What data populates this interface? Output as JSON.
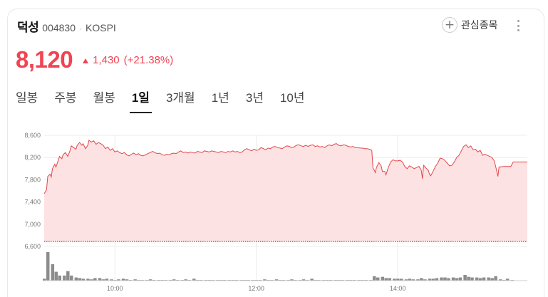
{
  "stock": {
    "name": "덕성",
    "code": "004830",
    "separator": "·",
    "market": "KOSPI",
    "price": "8,120",
    "change": "1,430",
    "change_pct": "(+21.38%)",
    "up_color": "#f04452"
  },
  "actions": {
    "favorite_icon": "plus-icon",
    "favorite_label": "관심종목",
    "more_icon": "more-vertical-icon"
  },
  "tabs": [
    {
      "label": "일봉",
      "active": false
    },
    {
      "label": "주봉",
      "active": false
    },
    {
      "label": "월봉",
      "active": false
    },
    {
      "label": "1일",
      "active": true
    },
    {
      "label": "3개월",
      "active": false
    },
    {
      "label": "1년",
      "active": false
    },
    {
      "label": "3년",
      "active": false
    },
    {
      "label": "10년",
      "active": false
    }
  ],
  "chart_data": {
    "type": "area",
    "line_color": "#e0474c",
    "fill_color": "#fde2e3",
    "grid": true,
    "y_ticks": [
      "8,600",
      "8,200",
      "7,800",
      "7,400",
      "7,000",
      "6,600"
    ],
    "y_tick_values": [
      8600,
      8200,
      7800,
      7400,
      7000,
      6600
    ],
    "ylim": [
      6600,
      8600
    ],
    "x_ticks": [
      "10:00",
      "12:00",
      "14:00"
    ],
    "x_tick_minutes": [
      60,
      180,
      300
    ],
    "xlim": [
      0,
      410
    ],
    "reference_value": 6690,
    "series": [
      {
        "values": [
          [
            0,
            7550
          ],
          [
            2,
            7620
          ],
          [
            3,
            7860
          ],
          [
            5,
            7900
          ],
          [
            6,
            7850
          ],
          [
            7,
            8000
          ],
          [
            9,
            8080
          ],
          [
            10,
            8030
          ],
          [
            12,
            8150
          ],
          [
            13,
            8220
          ],
          [
            15,
            8180
          ],
          [
            16,
            8250
          ],
          [
            18,
            8290
          ],
          [
            20,
            8220
          ],
          [
            22,
            8330
          ],
          [
            23,
            8410
          ],
          [
            25,
            8380
          ],
          [
            27,
            8350
          ],
          [
            28,
            8420
          ],
          [
            30,
            8470
          ],
          [
            32,
            8420
          ],
          [
            33,
            8450
          ],
          [
            35,
            8360
          ],
          [
            37,
            8420
          ],
          [
            38,
            8510
          ],
          [
            40,
            8480
          ],
          [
            42,
            8500
          ],
          [
            44,
            8440
          ],
          [
            46,
            8470
          ],
          [
            48,
            8450
          ],
          [
            50,
            8420
          ],
          [
            52,
            8360
          ],
          [
            54,
            8390
          ],
          [
            56,
            8330
          ],
          [
            58,
            8360
          ],
          [
            60,
            8300
          ],
          [
            62,
            8320
          ],
          [
            64,
            8290
          ],
          [
            66,
            8270
          ],
          [
            68,
            8290
          ],
          [
            70,
            8250
          ],
          [
            72,
            8230
          ],
          [
            74,
            8260
          ],
          [
            76,
            8280
          ],
          [
            78,
            8250
          ],
          [
            80,
            8270
          ],
          [
            82,
            8240
          ],
          [
            84,
            8230
          ],
          [
            86,
            8250
          ],
          [
            88,
            8270
          ],
          [
            90,
            8290
          ],
          [
            92,
            8310
          ],
          [
            94,
            8290
          ],
          [
            96,
            8270
          ],
          [
            98,
            8280
          ],
          [
            100,
            8250
          ],
          [
            102,
            8240
          ],
          [
            104,
            8260
          ],
          [
            106,
            8250
          ],
          [
            108,
            8270
          ],
          [
            110,
            8280
          ],
          [
            112,
            8270
          ],
          [
            114,
            8300
          ],
          [
            116,
            8320
          ],
          [
            118,
            8290
          ],
          [
            120,
            8300
          ],
          [
            122,
            8280
          ],
          [
            124,
            8300
          ],
          [
            126,
            8290
          ],
          [
            128,
            8280
          ],
          [
            130,
            8310
          ],
          [
            132,
            8300
          ],
          [
            134,
            8290
          ],
          [
            136,
            8320
          ],
          [
            138,
            8310
          ],
          [
            140,
            8300
          ],
          [
            142,
            8320
          ],
          [
            144,
            8310
          ],
          [
            146,
            8300
          ],
          [
            148,
            8290
          ],
          [
            150,
            8310
          ],
          [
            152,
            8300
          ],
          [
            154,
            8290
          ],
          [
            156,
            8310
          ],
          [
            158,
            8300
          ],
          [
            160,
            8320
          ],
          [
            162,
            8300
          ],
          [
            164,
            8310
          ],
          [
            166,
            8290
          ],
          [
            168,
            8300
          ],
          [
            170,
            8340
          ],
          [
            172,
            8360
          ],
          [
            174,
            8340
          ],
          [
            176,
            8320
          ],
          [
            178,
            8350
          ],
          [
            180,
            8330
          ],
          [
            182,
            8340
          ],
          [
            184,
            8380
          ],
          [
            186,
            8360
          ],
          [
            188,
            8340
          ],
          [
            190,
            8370
          ],
          [
            192,
            8360
          ],
          [
            194,
            8390
          ],
          [
            196,
            8400
          ],
          [
            198,
            8380
          ],
          [
            200,
            8370
          ],
          [
            202,
            8360
          ],
          [
            204,
            8390
          ],
          [
            206,
            8410
          ],
          [
            208,
            8400
          ],
          [
            210,
            8380
          ],
          [
            212,
            8390
          ],
          [
            214,
            8420
          ],
          [
            216,
            8430
          ],
          [
            218,
            8410
          ],
          [
            220,
            8400
          ],
          [
            222,
            8420
          ],
          [
            224,
            8400
          ],
          [
            226,
            8420
          ],
          [
            228,
            8430
          ],
          [
            230,
            8400
          ],
          [
            232,
            8410
          ],
          [
            234,
            8390
          ],
          [
            236,
            8400
          ],
          [
            238,
            8380
          ],
          [
            240,
            8410
          ],
          [
            242,
            8430
          ],
          [
            244,
            8410
          ],
          [
            246,
            8440
          ],
          [
            248,
            8450
          ],
          [
            250,
            8420
          ],
          [
            252,
            8410
          ],
          [
            254,
            8430
          ],
          [
            256,
            8420
          ],
          [
            258,
            8400
          ],
          [
            260,
            8390
          ],
          [
            262,
            8400
          ],
          [
            264,
            8380
          ],
          [
            266,
            8380
          ],
          [
            268,
            8370
          ],
          [
            270,
            8370
          ],
          [
            272,
            8360
          ],
          [
            274,
            8360
          ],
          [
            276,
            8350
          ],
          [
            278,
            8330
          ],
          [
            279,
            8010
          ],
          [
            280,
            7980
          ],
          [
            281,
            7930
          ],
          [
            282,
            8020
          ],
          [
            284,
            8110
          ],
          [
            286,
            8050
          ],
          [
            287,
            7950
          ],
          [
            289,
            7950
          ],
          [
            290,
            7890
          ],
          [
            292,
            8020
          ],
          [
            294,
            8120
          ],
          [
            296,
            8160
          ],
          [
            298,
            8140
          ],
          [
            300,
            8140
          ],
          [
            302,
            8150
          ],
          [
            304,
            8120
          ],
          [
            306,
            8040
          ],
          [
            308,
            8000
          ],
          [
            310,
            8050
          ],
          [
            312,
            8030
          ],
          [
            314,
            8000
          ],
          [
            316,
            8020
          ],
          [
            318,
            8040
          ],
          [
            320,
            7970
          ],
          [
            321,
            7820
          ],
          [
            322,
            8060
          ],
          [
            324,
            8010
          ],
          [
            326,
            7970
          ],
          [
            327,
            7900
          ],
          [
            328,
            7870
          ],
          [
            330,
            7950
          ],
          [
            332,
            8040
          ],
          [
            334,
            8100
          ],
          [
            336,
            8190
          ],
          [
            338,
            8180
          ],
          [
            340,
            8150
          ],
          [
            342,
            8100
          ],
          [
            344,
            8050
          ],
          [
            346,
            8060
          ],
          [
            348,
            8120
          ],
          [
            350,
            8200
          ],
          [
            352,
            8240
          ],
          [
            354,
            8320
          ],
          [
            356,
            8400
          ],
          [
            358,
            8430
          ],
          [
            360,
            8380
          ],
          [
            362,
            8410
          ],
          [
            364,
            8340
          ],
          [
            366,
            8350
          ],
          [
            368,
            8300
          ],
          [
            370,
            8330
          ],
          [
            372,
            8240
          ],
          [
            374,
            8260
          ],
          [
            376,
            8240
          ],
          [
            378,
            8220
          ],
          [
            380,
            8200
          ],
          [
            382,
            8140
          ],
          [
            384,
            7960
          ],
          [
            385,
            7860
          ],
          [
            386,
            8030
          ],
          [
            390,
            8040
          ],
          [
            396,
            8040
          ],
          [
            398,
            8120
          ],
          [
            410,
            8120
          ]
        ]
      }
    ],
    "volume": [
      [
        0,
        3
      ],
      [
        3,
        45
      ],
      [
        7,
        26
      ],
      [
        10,
        14
      ],
      [
        13,
        8
      ],
      [
        17,
        8
      ],
      [
        20,
        15
      ],
      [
        23,
        8
      ],
      [
        27,
        5
      ],
      [
        30,
        4
      ],
      [
        33,
        3
      ],
      [
        37,
        3
      ],
      [
        40,
        2
      ],
      [
        43,
        4
      ],
      [
        47,
        4
      ],
      [
        50,
        2
      ],
      [
        53,
        3
      ],
      [
        57,
        2
      ],
      [
        60,
        1
      ],
      [
        63,
        2
      ],
      [
        67,
        3
      ],
      [
        70,
        2
      ],
      [
        73,
        1
      ],
      [
        77,
        2
      ],
      [
        80,
        1
      ],
      [
        83,
        1
      ],
      [
        87,
        1
      ],
      [
        90,
        2
      ],
      [
        93,
        1
      ],
      [
        97,
        1
      ],
      [
        100,
        1
      ],
      [
        103,
        1
      ],
      [
        107,
        1
      ],
      [
        110,
        2
      ],
      [
        113,
        1
      ],
      [
        117,
        1
      ],
      [
        120,
        2
      ],
      [
        123,
        1
      ],
      [
        127,
        3
      ],
      [
        130,
        1
      ],
      [
        133,
        1
      ],
      [
        137,
        1
      ],
      [
        140,
        1
      ],
      [
        143,
        1
      ],
      [
        147,
        1
      ],
      [
        150,
        1
      ],
      [
        153,
        1
      ],
      [
        157,
        1
      ],
      [
        160,
        1
      ],
      [
        163,
        1
      ],
      [
        167,
        1
      ],
      [
        170,
        1
      ],
      [
        173,
        1
      ],
      [
        177,
        1
      ],
      [
        180,
        1
      ],
      [
        183,
        1
      ],
      [
        187,
        2
      ],
      [
        190,
        1
      ],
      [
        193,
        1
      ],
      [
        197,
        2
      ],
      [
        200,
        1
      ],
      [
        203,
        1
      ],
      [
        207,
        1
      ],
      [
        210,
        2
      ],
      [
        213,
        1
      ],
      [
        217,
        1
      ],
      [
        220,
        2
      ],
      [
        223,
        1
      ],
      [
        227,
        3
      ],
      [
        230,
        1
      ],
      [
        233,
        1
      ],
      [
        237,
        1
      ],
      [
        240,
        1
      ],
      [
        243,
        1
      ],
      [
        247,
        1
      ],
      [
        250,
        1
      ],
      [
        253,
        1
      ],
      [
        257,
        1
      ],
      [
        260,
        1
      ],
      [
        263,
        1
      ],
      [
        267,
        1
      ],
      [
        270,
        1
      ],
      [
        273,
        1
      ],
      [
        277,
        1
      ],
      [
        280,
        7
      ],
      [
        283,
        5
      ],
      [
        287,
        6
      ],
      [
        290,
        4
      ],
      [
        293,
        4
      ],
      [
        297,
        3
      ],
      [
        300,
        3
      ],
      [
        303,
        3
      ],
      [
        307,
        2
      ],
      [
        310,
        3
      ],
      [
        313,
        2
      ],
      [
        317,
        2
      ],
      [
        320,
        4
      ],
      [
        323,
        2
      ],
      [
        327,
        3
      ],
      [
        330,
        3
      ],
      [
        333,
        4
      ],
      [
        337,
        5
      ],
      [
        340,
        5
      ],
      [
        343,
        4
      ],
      [
        347,
        5
      ],
      [
        350,
        4
      ],
      [
        353,
        5
      ],
      [
        357,
        9
      ],
      [
        360,
        6
      ],
      [
        363,
        5
      ],
      [
        367,
        5
      ],
      [
        370,
        4
      ],
      [
        373,
        5
      ],
      [
        377,
        5
      ],
      [
        380,
        4
      ],
      [
        383,
        7
      ],
      [
        387,
        2
      ],
      [
        390,
        1
      ],
      [
        393,
        3
      ],
      [
        397,
        1
      ]
    ]
  }
}
